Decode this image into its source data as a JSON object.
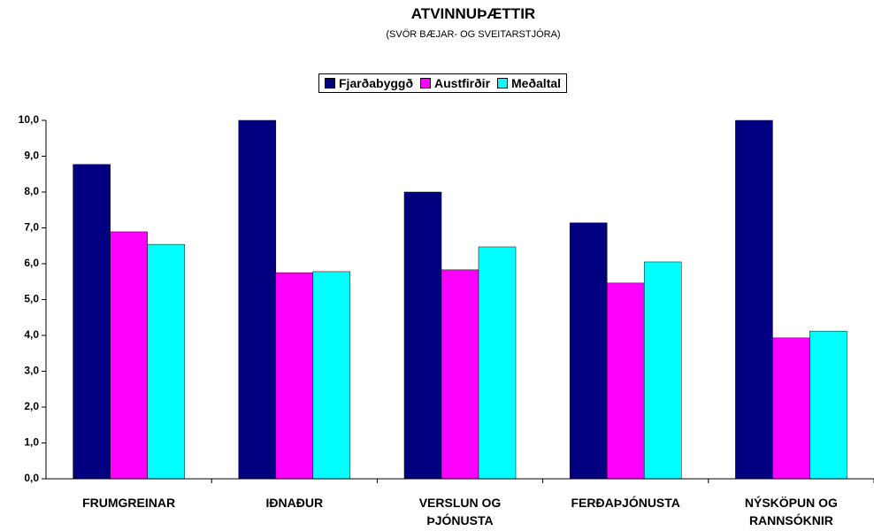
{
  "chart_data": {
    "type": "bar",
    "title": "ATVINNUÞÆTTIR",
    "subtitle": "(SVÖR BÆJAR- OG SVEITARSTJÓRA)",
    "categories": [
      "FRUMGREINAR",
      "IÐNAÐUR",
      "VERSLUN OG ÞJÓNUSTA",
      "FERÐAÞJÓNUSTA",
      "NÝSKÖPUN OG RANNSÓKNIR"
    ],
    "series": [
      {
        "name": "Fjarðabyggð",
        "color": "#000080",
        "values": [
          8.77,
          10,
          8.0,
          7.14,
          10
        ]
      },
      {
        "name": "Austfirðir",
        "color": "#ff00ff",
        "values": [
          6.89,
          5.75,
          5.83,
          5.46,
          3.93
        ]
      },
      {
        "name": "Meðaltal",
        "color": "#00ffff",
        "values": [
          6.54,
          5.78,
          6.47,
          6.05,
          4.12
        ]
      }
    ],
    "ylim": [
      0,
      10
    ],
    "yticks": [
      {
        "value": 0,
        "label": "0,0"
      },
      {
        "value": 1,
        "label": "1,0"
      },
      {
        "value": 2,
        "label": "2,0"
      },
      {
        "value": 3,
        "label": "3,0"
      },
      {
        "value": 4,
        "label": "4,0"
      },
      {
        "value": 5,
        "label": "5,0"
      },
      {
        "value": 6,
        "label": "6,0"
      },
      {
        "value": 7,
        "label": "7,0"
      },
      {
        "value": 8,
        "label": "8,0"
      },
      {
        "value": 9,
        "label": "9,0"
      },
      {
        "value": 10,
        "label": "10,0"
      }
    ],
    "legend": "top"
  }
}
